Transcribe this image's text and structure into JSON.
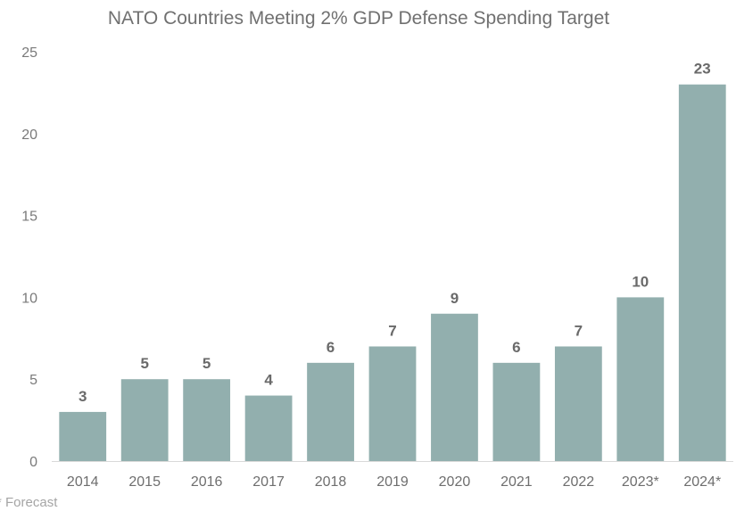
{
  "chart_data": {
    "type": "bar",
    "title": "NATO Countries Meeting 2% GDP Defense Spending Target",
    "xlabel": "",
    "ylabel": "",
    "categories": [
      "2014",
      "2015",
      "2016",
      "2017",
      "2018",
      "2019",
      "2020",
      "2021",
      "2022",
      "2023*",
      "2024*"
    ],
    "values": [
      3,
      5,
      5,
      4,
      6,
      7,
      9,
      6,
      7,
      10,
      23
    ],
    "ylim": [
      0,
      25
    ],
    "yticks": [
      0,
      5,
      10,
      15,
      20,
      25
    ],
    "grid": false,
    "legend": "none",
    "footnote": "* Forecast",
    "colors": {
      "bar": "#92afae",
      "axis": "#d9d9d9"
    }
  }
}
